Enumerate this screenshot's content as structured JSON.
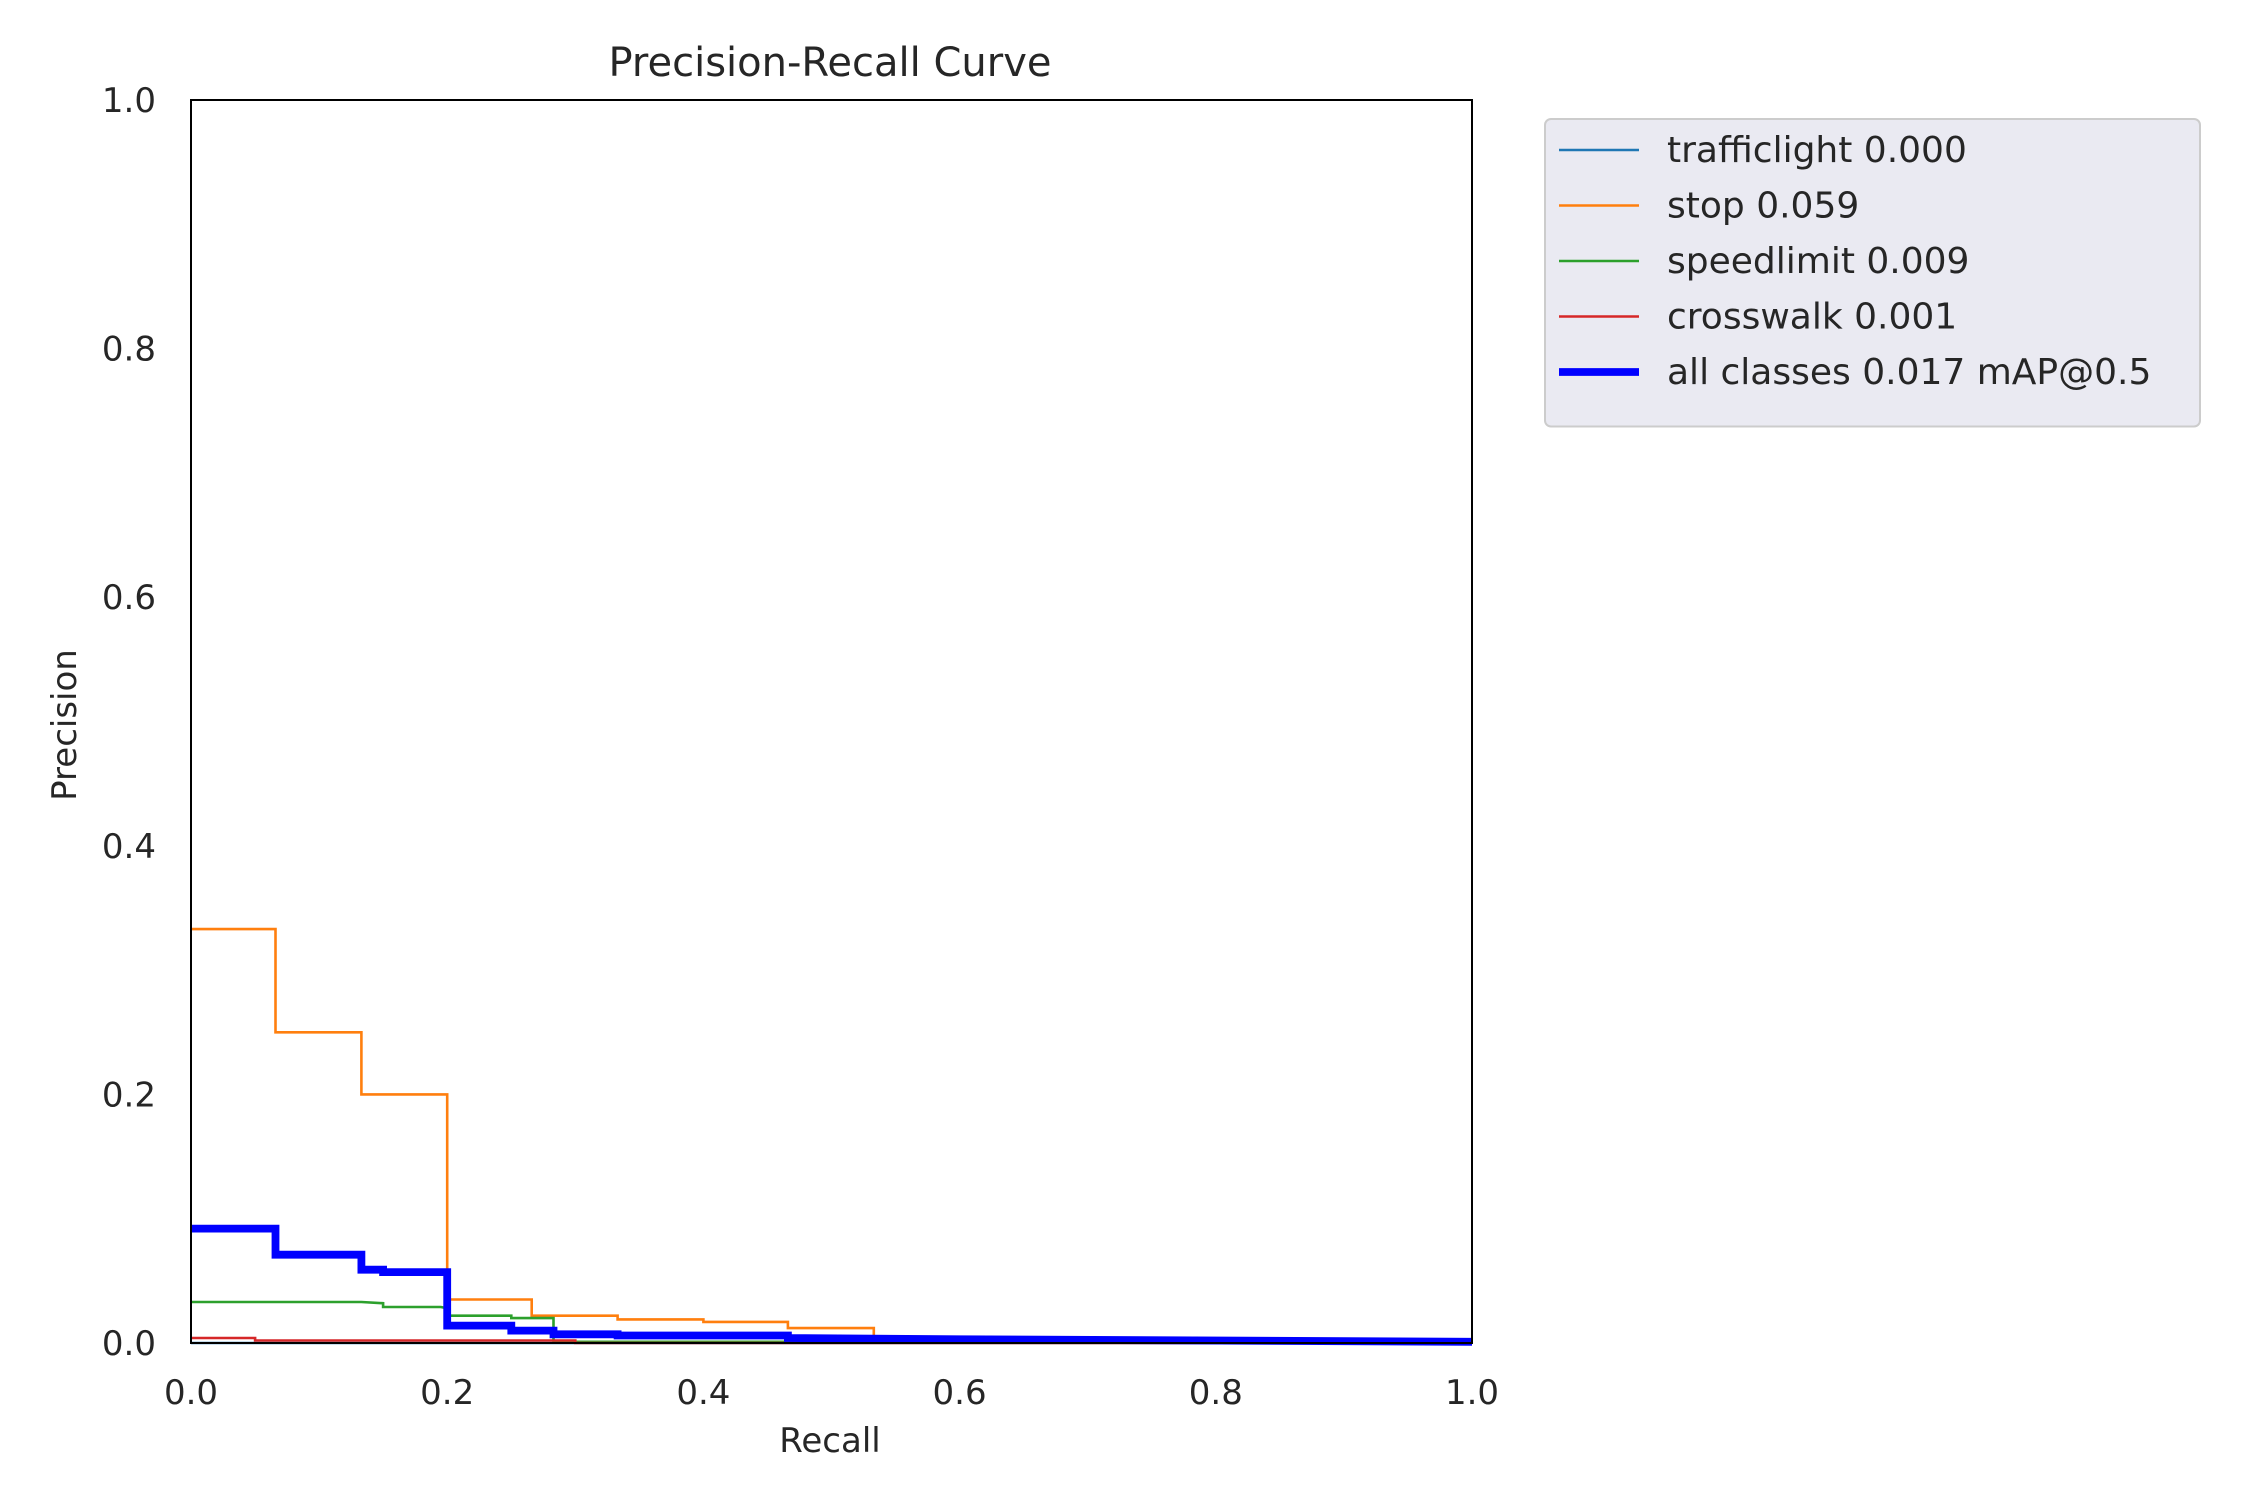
{
  "chart_data": {
    "type": "line",
    "title": "Precision-Recall Curve",
    "xlabel": "Recall",
    "ylabel": "Precision",
    "xlim": [
      0,
      1
    ],
    "ylim": [
      0,
      1
    ],
    "xticks": [
      "0.0",
      "0.2",
      "0.4",
      "0.6",
      "0.8",
      "1.0"
    ],
    "yticks": [
      "0.0",
      "0.2",
      "0.4",
      "0.6",
      "0.8",
      "1.0"
    ],
    "grid": false,
    "legend_position": "outside-top-right",
    "series": [
      {
        "name": "trafficlight 0.000",
        "color": "#1f77b4",
        "width": 1,
        "x": [
          0,
          1
        ],
        "y": [
          0.0,
          0.0
        ]
      },
      {
        "name": "stop 0.059",
        "color": "#ff7f0e",
        "width": 1,
        "x": [
          0,
          0.066,
          0.066,
          0.133,
          0.133,
          0.2,
          0.2,
          0.266,
          0.266,
          0.333,
          0.333,
          0.4,
          0.4,
          0.466,
          0.466,
          0.533,
          0.533,
          0.6,
          1.0
        ],
        "y": [
          0.333,
          0.333,
          0.25,
          0.25,
          0.2,
          0.2,
          0.035,
          0.035,
          0.022,
          0.022,
          0.019,
          0.019,
          0.017,
          0.017,
          0.012,
          0.012,
          0.003,
          0.003,
          0.002
        ]
      },
      {
        "name": "speedlimit 0.009",
        "color": "#2ca02c",
        "width": 1,
        "x": [
          0,
          0.133,
          0.15,
          0.15,
          0.195,
          0.2,
          0.2,
          0.25,
          0.25,
          0.283,
          0.283,
          1.0
        ],
        "y": [
          0.033,
          0.033,
          0.032,
          0.029,
          0.029,
          0.028,
          0.022,
          0.022,
          0.02,
          0.02,
          0.001,
          0.001
        ]
      },
      {
        "name": "crosswalk 0.001",
        "color": "#d62728",
        "width": 1,
        "x": [
          0,
          0.05,
          0.05,
          0.3,
          0.3,
          1.0
        ],
        "y": [
          0.004,
          0.004,
          0.002,
          0.002,
          0.0,
          0.0
        ]
      },
      {
        "name": "all classes 0.017 mAP@0.5",
        "color": "#0000ff",
        "width": 3,
        "x": [
          0,
          0.066,
          0.066,
          0.133,
          0.133,
          0.15,
          0.15,
          0.2,
          0.2,
          0.25,
          0.25,
          0.283,
          0.283,
          0.333,
          0.333,
          0.466,
          0.466,
          0.6,
          1.0
        ],
        "y": [
          0.092,
          0.092,
          0.071,
          0.071,
          0.059,
          0.059,
          0.057,
          0.057,
          0.014,
          0.014,
          0.01,
          0.01,
          0.007,
          0.007,
          0.006,
          0.006,
          0.004,
          0.003,
          0.001
        ]
      }
    ]
  }
}
